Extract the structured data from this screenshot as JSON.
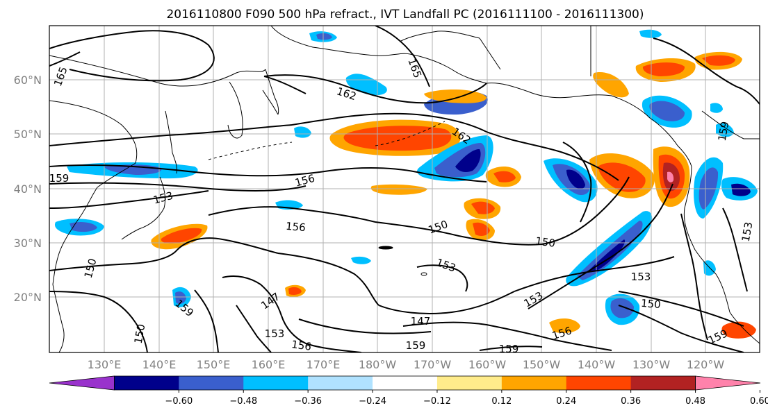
{
  "title": "2016110800 F090 500 hPa refract., IVT Landfall PC (2016111100 - 2016111300)",
  "lat_labels": [
    "60°N",
    "50°N",
    "40°N",
    "30°N",
    "20°N"
  ],
  "lon_labels": [
    "130°E",
    "140°E",
    "150°E",
    "160°E",
    "170°E",
    "180°W",
    "170°W",
    "160°W",
    "150°W",
    "140°W",
    "130°W",
    "120°W"
  ],
  "colorbar": {
    "colors": [
      "#9932cc",
      "#00008b",
      "#3a5fcd",
      "#00bfff",
      "#b0e2ff",
      "#ffffff",
      "#ffec8b",
      "#ffa500",
      "#ff4500",
      "#b22222",
      "#ff82ab"
    ],
    "tick_labels": [
      "−0.60",
      "−0.48",
      "−0.36",
      "−0.24",
      "−0.12",
      "0.12",
      "0.24",
      "0.36",
      "0.48",
      "0.60"
    ]
  },
  "contour_labels": [
    "165",
    "162",
    "165",
    "162",
    "159",
    "156",
    "153",
    "156",
    "150",
    "150",
    "153",
    "150",
    "153",
    "153",
    "150",
    "147",
    "147",
    "159",
    "153",
    "156",
    "159",
    "159",
    "156",
    "159",
    "150",
    "153",
    "159"
  ]
}
